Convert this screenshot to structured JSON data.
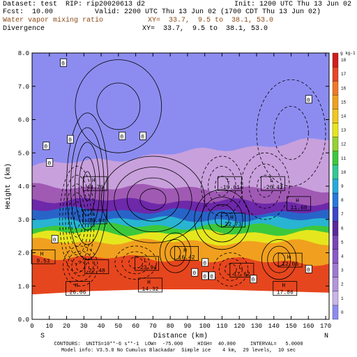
{
  "header": {
    "dataset": "Dataset: test  RIP: rip20020613 d2",
    "init": "Init: 1200 UTC Thu 13 Jun 02",
    "fcst": "Fcst:  10.00",
    "valid": "Valid: 2200 UTC Thu 13 Jun 02 (1700 CDT Thu 13 Jun 02)",
    "field1": "Water vapor mixing ratio",
    "field1_xy": "XY=  33.7,  9.5 to  38.1, 53.0",
    "field2": "Divergence",
    "field2_xy": "XY=  33.7,  9.5 to  38.1, 53.0"
  },
  "footer": {
    "line1": "CONTOURS:  UNITS=10**-6 s**-1  LOW=  -75.000     HIGH=  40.000     INTERVAL=   5.0000",
    "line2": "Model info: V3.5.0 No Cumulus Blackadar  Simple ice    4 km,  29 levels,  10 sec"
  },
  "colors": {
    "lowest": "#8c8cf0",
    "band_1": "#c8a0dc",
    "band_2": "#a05ab4",
    "band_3": "#6e28aa",
    "band_4": "#2864c8",
    "band_5": "#28b4d2",
    "band_6": "#3cc83c",
    "band_7": "#e6e61e",
    "band_8": "#f0a01e",
    "band_9": "#e6461e",
    "terrain": "#ffffff"
  },
  "chart_data": {
    "type": "heatmap",
    "title": "Water vapor mixing ratio",
    "xlabel": "Distance (km)",
    "ylabel": "Height (km)",
    "xlim": [
      0,
      172
    ],
    "ylim": [
      0,
      8
    ],
    "x_ticks": [
      0,
      10,
      20,
      30,
      40,
      50,
      60,
      70,
      80,
      90,
      100,
      110,
      120,
      130,
      140,
      150,
      160,
      170
    ],
    "y_ticks": [
      0.0,
      1.0,
      2.0,
      3.0,
      4.0,
      5.0,
      6.0,
      7.0,
      8.0
    ],
    "left_end_label": "S",
    "right_end_label": "N",
    "colorbar": {
      "unit": "g kg-1",
      "levels": [
        0,
        1,
        2,
        3,
        4,
        5,
        6,
        7,
        8,
        9,
        10,
        11,
        12,
        13,
        14,
        15,
        16,
        17,
        18
      ],
      "colors": [
        "#8c8cf0",
        "#c8b4e6",
        "#b496dc",
        "#a078d2",
        "#8c5ac8",
        "#7846b4",
        "#5a28a0",
        "#3c46c8",
        "#2878dc",
        "#28aadc",
        "#32c896",
        "#3cc83c",
        "#96d232",
        "#e6e61e",
        "#f0c81e",
        "#f0a01e",
        "#f07828",
        "#e64628",
        "#d21e1e"
      ]
    },
    "moisture_layers_km": [
      {
        "top_left": 4.6,
        "top_right": 5.4,
        "color_key": "band_1"
      },
      {
        "top_left": 4.0,
        "top_right": 3.9,
        "color_key": "band_2"
      },
      {
        "top_left": 3.6,
        "top_right": 3.5,
        "color_key": "band_3"
      },
      {
        "top_left": 3.3,
        "top_right": 3.2,
        "color_key": "band_4"
      },
      {
        "top_left": 3.0,
        "top_right": 3.0,
        "color_key": "band_5"
      },
      {
        "top_left": 2.8,
        "top_right": 2.8,
        "color_key": "band_6"
      },
      {
        "top_left": 2.6,
        "top_right": 2.6,
        "color_key": "band_7"
      },
      {
        "top_left": 2.35,
        "top_right": 2.3,
        "color_key": "band_8"
      },
      {
        "top_left": 1.9,
        "top_right": 1.7,
        "color_key": "band_9"
      }
    ],
    "terrain_top_km": [
      0.75,
      0.85,
      0.9,
      0.9,
      0.85,
      0.8
    ],
    "extrema_labels": [
      {
        "type": "H",
        "value": "44.79",
        "x": 30,
        "y": 4.1
      },
      {
        "type": "L",
        "value": "-19.61",
        "x": 108,
        "y": 4.1
      },
      {
        "type": "L",
        "value": "-20.42",
        "x": 133,
        "y": 4.1
      },
      {
        "type": "L",
        "value": "-79.64",
        "x": 30,
        "y": 3.1
      },
      {
        "type": "H",
        "value": "22.73",
        "x": 110,
        "y": 3.0
      },
      {
        "type": "H",
        "value": "11.68",
        "x": 148,
        "y": 3.5
      },
      {
        "type": "H",
        "value": "16.42",
        "x": 83,
        "y": 2.0
      },
      {
        "type": "H",
        "value": "12.06",
        "x": 143,
        "y": 1.8
      },
      {
        "type": "L",
        "value": "-23.94",
        "x": 60,
        "y": 1.7
      },
      {
        "type": "L",
        "value": "22.48",
        "x": 31,
        "y": 1.6
      },
      {
        "type": "L",
        "value": "17.62",
        "x": 115,
        "y": 1.5
      },
      {
        "type": "H",
        "value": "9.53",
        "x": 0,
        "y": 1.9
      },
      {
        "type": "H",
        "value": "14.32",
        "x": 62,
        "y": 1.05
      },
      {
        "type": "H",
        "value": "26.06",
        "x": 20,
        "y": 0.95
      },
      {
        "type": "H",
        "value": "17.86",
        "x": 140,
        "y": 0.95
      }
    ],
    "zero_labels": [
      {
        "x": 18,
        "y": 7.7
      },
      {
        "x": 22,
        "y": 5.4
      },
      {
        "x": 8,
        "y": 5.2
      },
      {
        "x": 52,
        "y": 5.5
      },
      {
        "x": 64,
        "y": 5.5
      },
      {
        "x": 160,
        "y": 6.6
      },
      {
        "x": 10,
        "y": 4.7
      },
      {
        "x": 13,
        "y": 2.4
      },
      {
        "x": 94,
        "y": 1.4
      },
      {
        "x": 100,
        "y": 1.7
      },
      {
        "x": 100,
        "y": 1.3
      },
      {
        "x": 104,
        "y": 1.3
      },
      {
        "x": 128,
        "y": 1.2
      },
      {
        "x": 160,
        "y": 1.5
      }
    ]
  }
}
